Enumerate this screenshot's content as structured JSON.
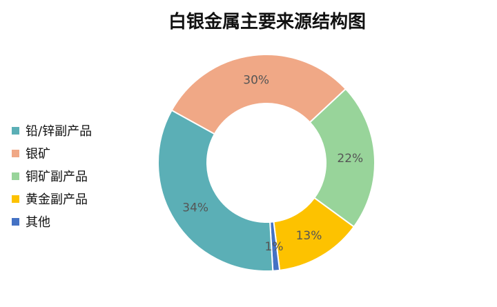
{
  "chart_data": {
    "type": "pie",
    "variant": "donut",
    "title": "白银金属主要来源结构图",
    "categories": [
      "铅/锌副产品",
      "银矿",
      "铜矿副产品",
      "黄金副产品",
      "其他"
    ],
    "values": [
      34,
      30,
      22,
      13,
      1
    ],
    "data_labels": [
      "34%",
      "30%",
      "22%",
      "13%",
      "1%"
    ],
    "colors": [
      "#5bafb6",
      "#f0a886",
      "#98d49a",
      "#fdc200",
      "#4472c4"
    ],
    "legend_position": "left"
  }
}
